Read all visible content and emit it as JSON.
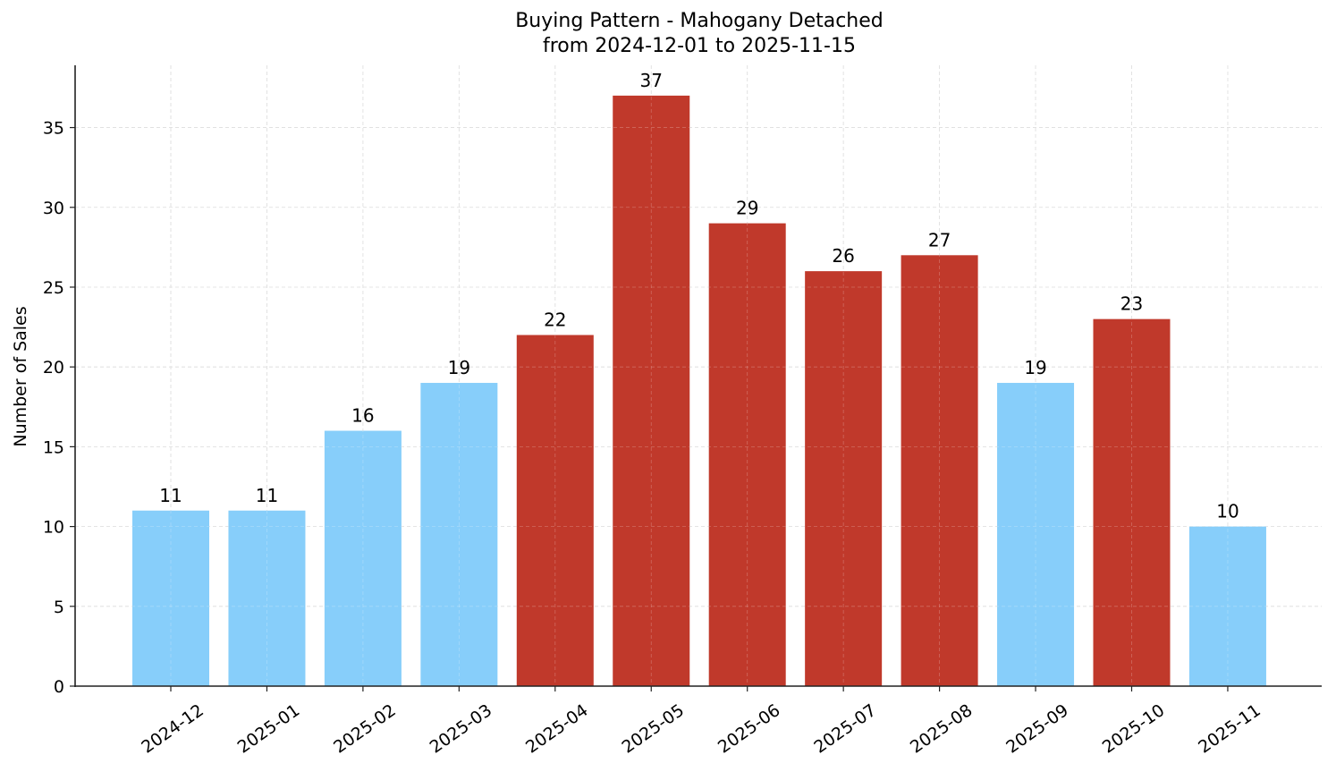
{
  "chart_data": {
    "type": "bar",
    "title": "Buying Pattern - Mahogany Detached",
    "subtitle": "from 2024-12-01 to 2025-11-15",
    "xlabel": "",
    "ylabel": "Number of Sales",
    "categories": [
      "2024-12",
      "2025-01",
      "2025-02",
      "2025-03",
      "2025-04",
      "2025-05",
      "2025-06",
      "2025-07",
      "2025-08",
      "2025-09",
      "2025-10",
      "2025-11"
    ],
    "values": [
      11,
      11,
      16,
      19,
      22,
      37,
      29,
      26,
      27,
      19,
      23,
      10
    ],
    "bar_colors": [
      "#87CEFA",
      "#87CEFA",
      "#87CEFA",
      "#87CEFA",
      "#C0392B",
      "#C0392B",
      "#C0392B",
      "#C0392B",
      "#C0392B",
      "#87CEFA",
      "#C0392B",
      "#87CEFA"
    ],
    "data_labels": [
      "11",
      "11",
      "16",
      "19",
      "22",
      "37",
      "29",
      "26",
      "27",
      "19",
      "23",
      "10"
    ],
    "yticks": [
      0,
      5,
      10,
      15,
      20,
      25,
      30,
      35
    ],
    "ylim": [
      0,
      38.9
    ],
    "grid": true,
    "legend": null
  },
  "colors": {
    "high": "#C0392B",
    "low": "#87CEFA",
    "grid": "#d3d3d3",
    "axis": "#222222"
  }
}
